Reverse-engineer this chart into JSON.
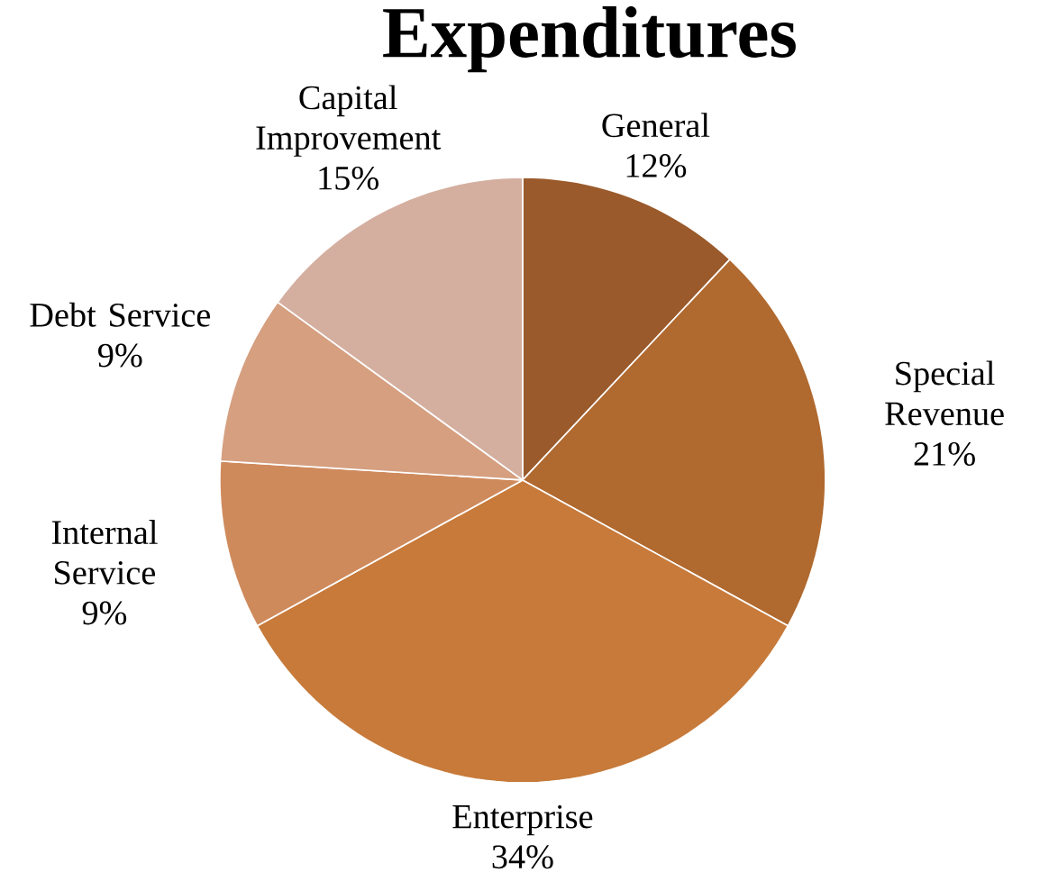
{
  "chart_data": {
    "type": "pie",
    "title": "Expenditures",
    "categories": [
      "General",
      "Special Revenue",
      "Enterprise",
      "Internal Service",
      "Debt Service",
      "Capital Improvement"
    ],
    "values": [
      12,
      21,
      34,
      9,
      9,
      15
    ],
    "value_labels": [
      "12%",
      "21%",
      "34%",
      "9%",
      "9%",
      "15%"
    ],
    "colors": [
      "#9a5a2b",
      "#b0692f",
      "#c77a3a",
      "#cf8a5c",
      "#d59f80",
      "#d4afa0"
    ]
  }
}
